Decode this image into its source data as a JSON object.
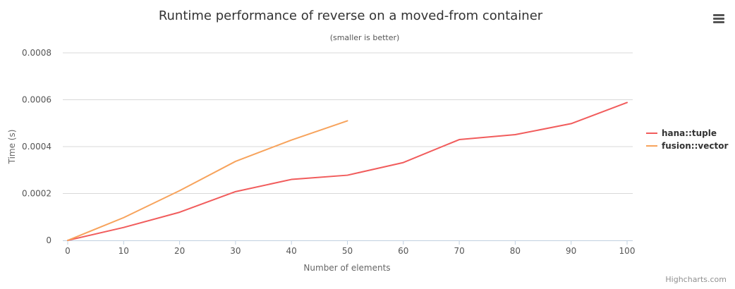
{
  "chart_data": {
    "type": "line",
    "title": "Runtime performance of reverse on a moved-from container",
    "subtitle": "(smaller is better)",
    "xlabel": "Number of elements",
    "ylabel": "Time (s)",
    "xlim": [
      0,
      100
    ],
    "ylim": [
      0,
      0.0008
    ],
    "x_ticks": [
      0,
      10,
      20,
      30,
      40,
      50,
      60,
      70,
      80,
      90,
      100
    ],
    "x_tick_labels": [
      "0",
      "10",
      "20",
      "30",
      "40",
      "50",
      "60",
      "70",
      "80",
      "90",
      "100"
    ],
    "y_ticks": [
      0,
      0.0002,
      0.0004,
      0.0006,
      0.0008
    ],
    "y_tick_labels": [
      "0",
      "0.0002",
      "0.0004",
      "0.0006",
      "0.0008"
    ],
    "grid": true,
    "legend_position": "right",
    "series": [
      {
        "name": "hana::tuple",
        "color": "#f15c5c",
        "x": [
          0,
          10,
          20,
          30,
          40,
          50,
          60,
          70,
          80,
          90,
          100
        ],
        "values": [
          0,
          5.5e-05,
          0.00012,
          0.000208,
          0.00026,
          0.000278,
          0.000332,
          0.00043,
          0.000451,
          0.000498,
          0.000588
        ]
      },
      {
        "name": "fusion::vector",
        "color": "#f7a35c",
        "x": [
          0,
          10,
          20,
          30,
          40,
          50
        ],
        "values": [
          0,
          9.7e-05,
          0.000212,
          0.000337,
          0.000428,
          0.00051
        ]
      }
    ]
  },
  "menu": {
    "icon": "hamburger-menu-icon"
  },
  "credits": "Highcharts.com"
}
